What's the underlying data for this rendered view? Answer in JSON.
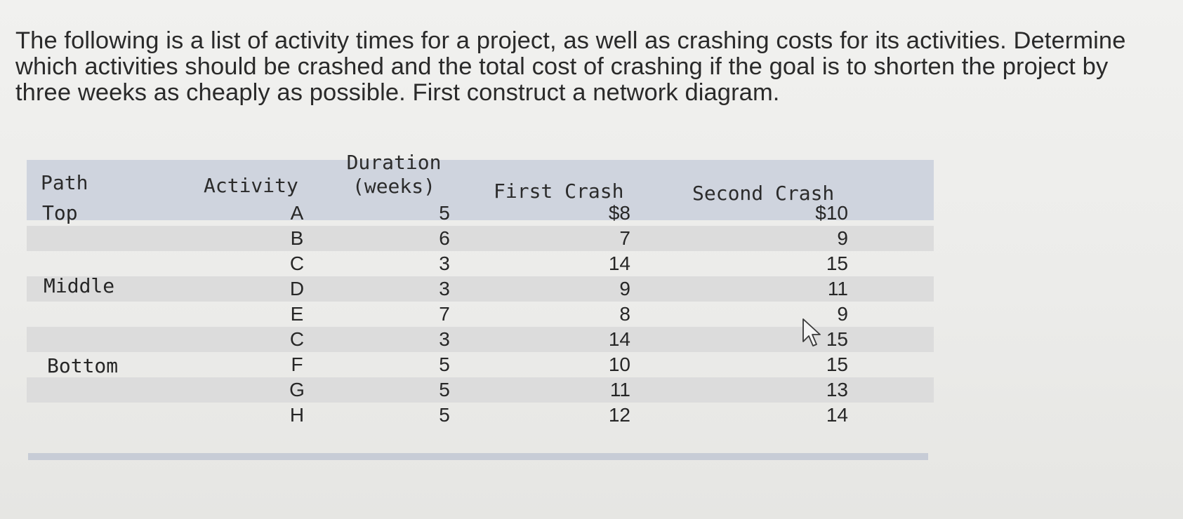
{
  "question": "The following is a list of activity times for a project, as well as crashing costs for its activities. Determine which activities should be crashed and the total cost of crashing if the goal is to shorten the project by three weeks as cheaply as possible. First construct a network diagram.",
  "table": {
    "headers": {
      "path": "Path",
      "activity": "Activity",
      "duration_line1": "Duration",
      "duration_line2": "(weeks)",
      "first_crash": "First Crash",
      "second_crash": "Second Crash"
    },
    "rows": [
      {
        "path": "Top",
        "activity": "A",
        "duration": "5",
        "first_crash": "$8",
        "second_crash": "$10"
      },
      {
        "path": "",
        "activity": "B",
        "duration": "6",
        "first_crash": "7",
        "second_crash": "9"
      },
      {
        "path": "",
        "activity": "C",
        "duration": "3",
        "first_crash": "14",
        "second_crash": "15"
      },
      {
        "path": "Middle",
        "activity": "D",
        "duration": "3",
        "first_crash": "9",
        "second_crash": "11"
      },
      {
        "path": "",
        "activity": "E",
        "duration": "7",
        "first_crash": "8",
        "second_crash": "9"
      },
      {
        "path": "",
        "activity": "C",
        "duration": "3",
        "first_crash": "14",
        "second_crash": "15"
      },
      {
        "path": "Bottom",
        "activity": "F",
        "duration": "5",
        "first_crash": "10",
        "second_crash": "15"
      },
      {
        "path": "",
        "activity": "G",
        "duration": "5",
        "first_crash": "11",
        "second_crash": "13"
      },
      {
        "path": "",
        "activity": "H",
        "duration": "5",
        "first_crash": "12",
        "second_crash": "14"
      }
    ]
  },
  "cursor": {
    "icon": "pointer-cursor-icon"
  }
}
